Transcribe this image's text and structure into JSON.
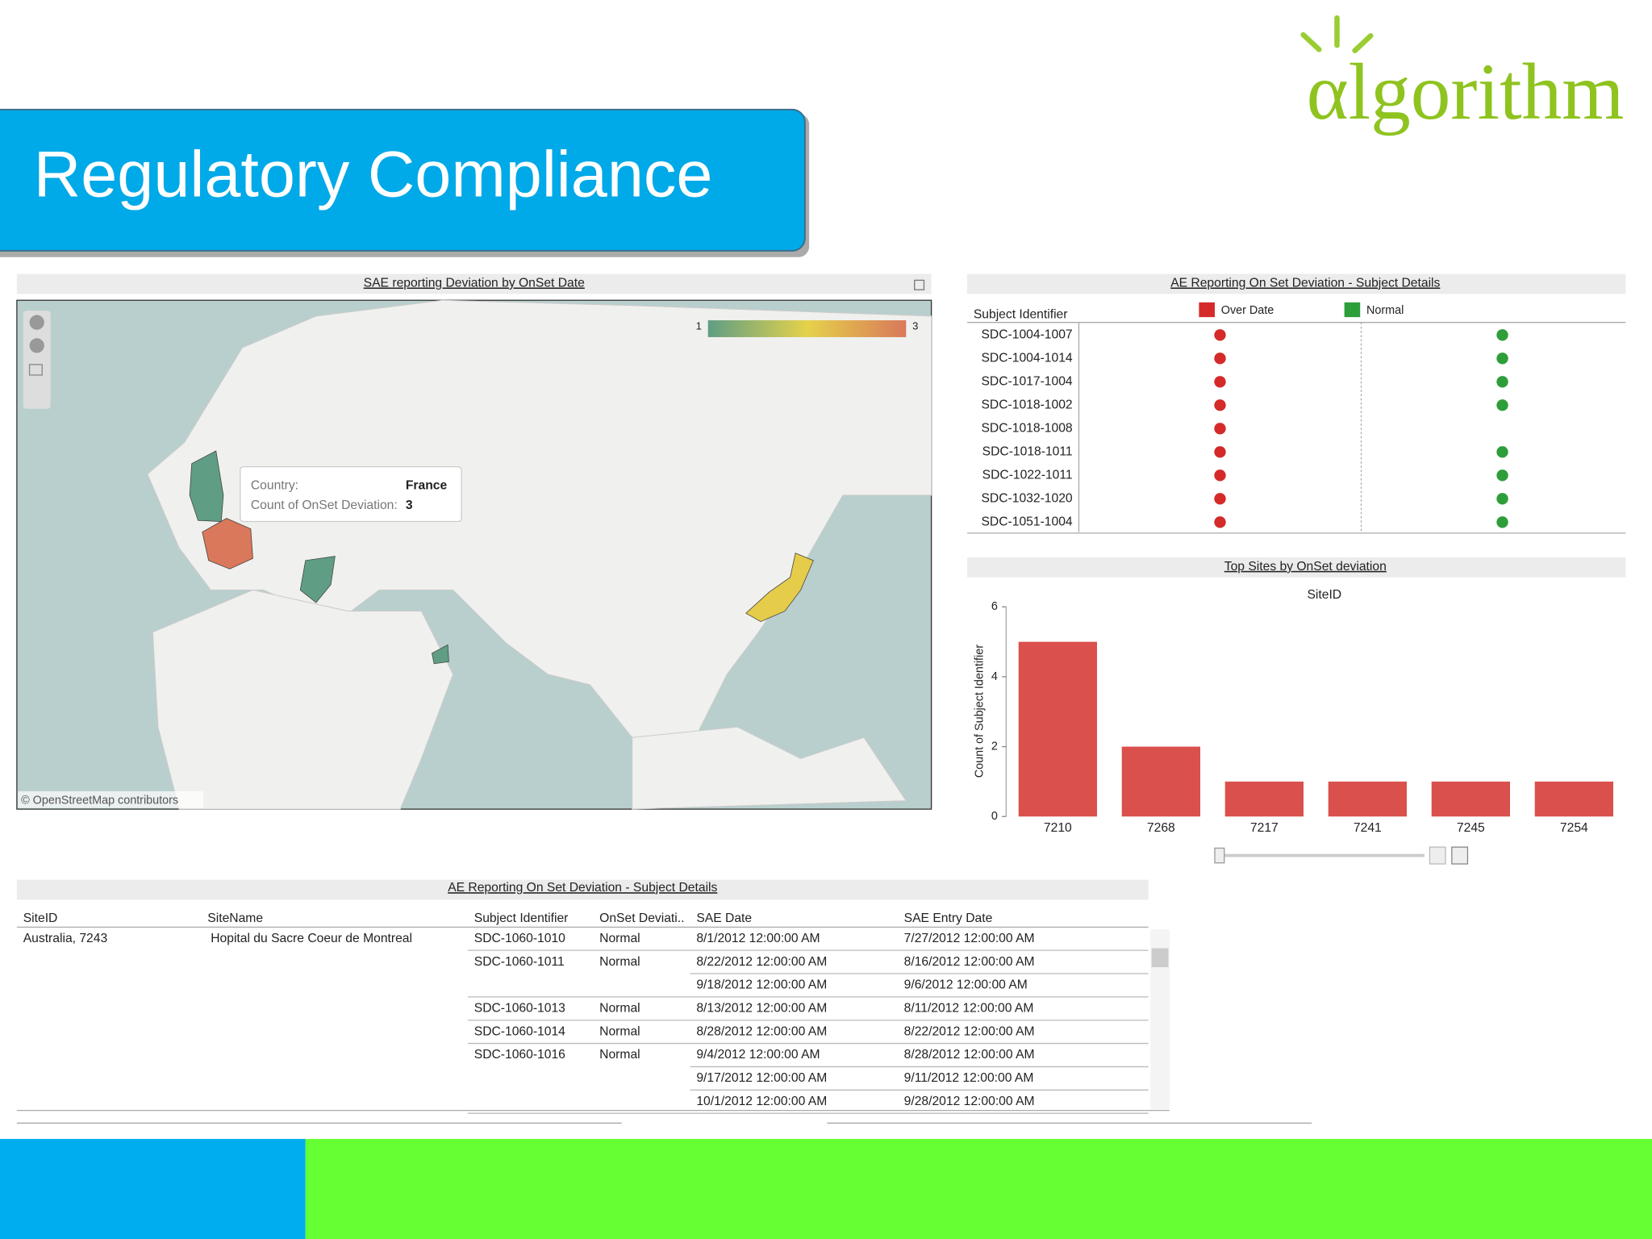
{
  "header": {
    "title": "Regulatory Compliance",
    "logo": "αlgorithm"
  },
  "map_panel": {
    "title": "SAE reporting Deviation by OnSet Date",
    "legend": {
      "min": 1,
      "max": 3
    },
    "tooltip": {
      "country_label": "Country:",
      "country": "France",
      "count_label": "Count of OnSet Deviation:",
      "count": 3
    },
    "attribution": "© OpenStreetMap contributors"
  },
  "subject_panel": {
    "title": "AE Reporting On Set Deviation - Subject Details",
    "column": "Subject Identifier",
    "legend": [
      {
        "name": "Over Date",
        "color": "#d42a2a"
      },
      {
        "name": "Normal",
        "color": "#2e9e3a"
      }
    ],
    "rows": [
      {
        "id": "SDC-1004-1007",
        "over_date": true,
        "normal": true
      },
      {
        "id": "SDC-1004-1014",
        "over_date": true,
        "normal": true
      },
      {
        "id": "SDC-1017-1004",
        "over_date": true,
        "normal": true
      },
      {
        "id": "SDC-1018-1002",
        "over_date": true,
        "normal": true
      },
      {
        "id": "SDC-1018-1008",
        "over_date": true,
        "normal": false
      },
      {
        "id": "SDC-1018-1011",
        "over_date": true,
        "normal": true
      },
      {
        "id": "SDC-1022-1011",
        "over_date": true,
        "normal": true
      },
      {
        "id": "SDC-1032-1020",
        "over_date": true,
        "normal": true
      },
      {
        "id": "SDC-1051-1004",
        "over_date": true,
        "normal": true
      }
    ]
  },
  "chart_data": {
    "type": "bar",
    "title": "Top Sites by OnSet deviation",
    "x_label": "SiteID",
    "y_label": "Count of Subject Identifier",
    "categories": [
      "7210",
      "7268",
      "7217",
      "7241",
      "7245",
      "7254"
    ],
    "values": [
      5,
      2,
      1,
      1,
      1,
      1
    ],
    "color": "#d9504c",
    "ylim": [
      0,
      6
    ],
    "yticks": [
      0,
      2,
      4,
      6
    ]
  },
  "table": {
    "title": "AE Reporting On Set Deviation - Subject Details",
    "columns": [
      "SiteID",
      "SiteName",
      "Subject Identifier",
      "OnSet Deviati..",
      "SAE Date",
      "SAE Entry Date"
    ],
    "site": {
      "id": "Australia, 7243",
      "name": "Hopital du Sacre Coeur de Montreal",
      "subjects": [
        {
          "id": "SDC-1060-1010",
          "deviation": "Normal",
          "entries": [
            [
              "8/1/2012 12:00:00 AM",
              "7/27/2012 12:00:00 AM"
            ]
          ]
        },
        {
          "id": "SDC-1060-1011",
          "deviation": "Normal",
          "entries": [
            [
              "8/22/2012 12:00:00 AM",
              "8/16/2012 12:00:00 AM"
            ],
            [
              "9/18/2012 12:00:00 AM",
              "9/6/2012 12:00:00 AM"
            ]
          ]
        },
        {
          "id": "SDC-1060-1013",
          "deviation": "Normal",
          "entries": [
            [
              "8/13/2012 12:00:00 AM",
              "8/11/2012 12:00:00 AM"
            ]
          ]
        },
        {
          "id": "SDC-1060-1014",
          "deviation": "Normal",
          "entries": [
            [
              "8/28/2012 12:00:00 AM",
              "8/22/2012 12:00:00 AM"
            ]
          ]
        },
        {
          "id": "SDC-1060-1016",
          "deviation": "Normal",
          "entries": [
            [
              "9/4/2012 12:00:00 AM",
              "8/28/2012 12:00:00 AM"
            ],
            [
              "9/17/2012 12:00:00 AM",
              "9/11/2012 12:00:00 AM"
            ],
            [
              "10/1/2012 12:00:00 AM",
              "9/28/2012 12:00:00 AM"
            ]
          ]
        }
      ]
    }
  }
}
